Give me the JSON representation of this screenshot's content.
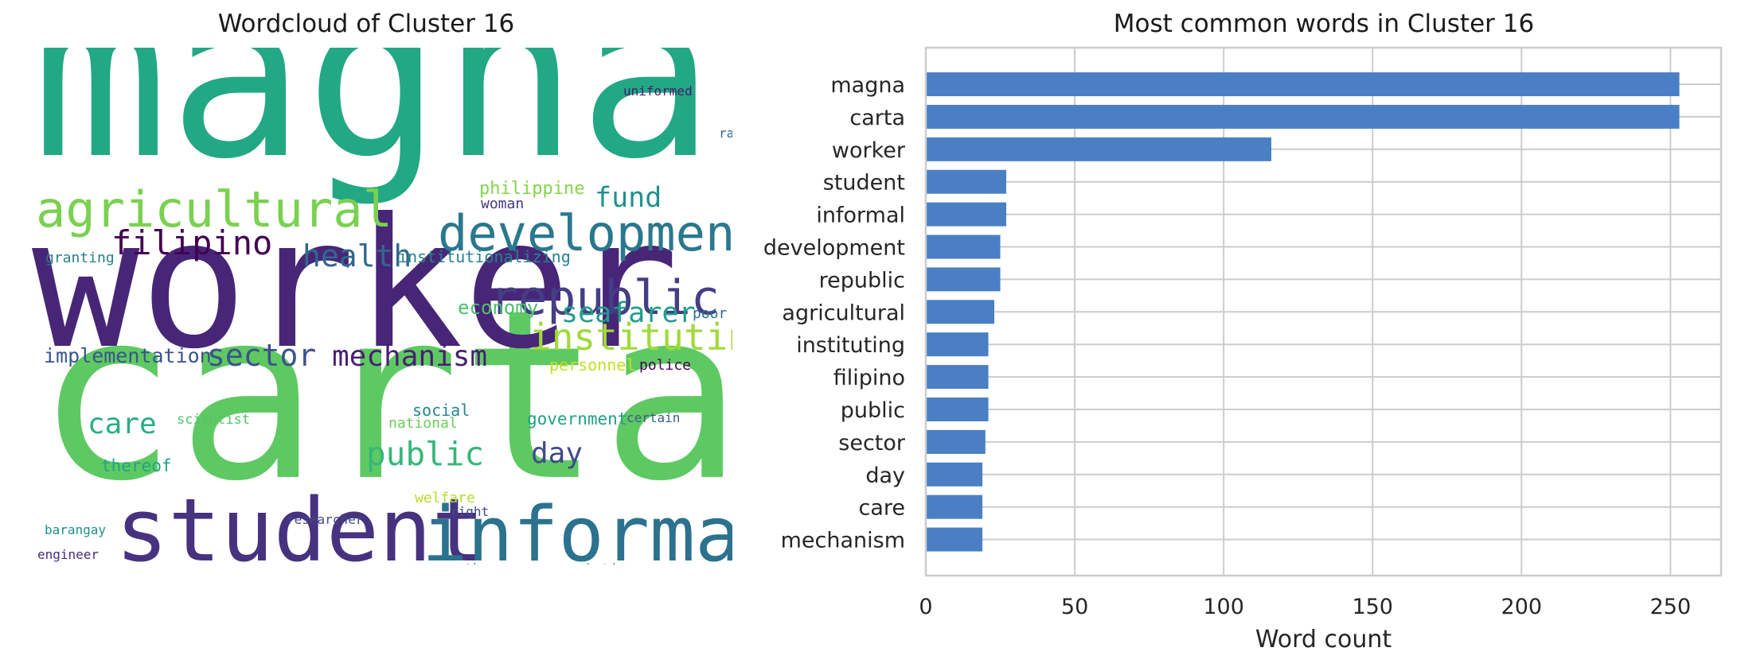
{
  "wordcloud": {
    "title": "Wordcloud of Cluster 16",
    "words": [
      {
        "text": "magna",
        "color": "#22a884"
      },
      {
        "text": "carta",
        "color": "#5ec962"
      },
      {
        "text": "worker",
        "color": "#482677"
      },
      {
        "text": "student",
        "color": "#46327e"
      },
      {
        "text": "informal",
        "color": "#2c728e"
      },
      {
        "text": "development",
        "color": "#2a788e"
      },
      {
        "text": "agricultural",
        "color": "#7ad151"
      },
      {
        "text": "republic",
        "color": "#433e85"
      },
      {
        "text": "instituting",
        "color": "#a0da39"
      },
      {
        "text": "filipino",
        "color": "#440154"
      },
      {
        "text": "health",
        "color": "#31688e"
      },
      {
        "text": "fund",
        "color": "#21918c"
      },
      {
        "text": "seafarer",
        "color": "#1f9e89"
      },
      {
        "text": "sector",
        "color": "#3b528b"
      },
      {
        "text": "mechanism",
        "color": "#481f70"
      },
      {
        "text": "public",
        "color": "#35b779"
      },
      {
        "text": "care",
        "color": "#29af7f"
      },
      {
        "text": "day",
        "color": "#3e4a89"
      },
      {
        "text": "implementation",
        "color": "#39568c"
      },
      {
        "text": "philippine",
        "color": "#84d44b"
      },
      {
        "text": "woman",
        "color": "#453781"
      },
      {
        "text": "economy",
        "color": "#4ac16d"
      },
      {
        "text": "institutionalizing",
        "color": "#26828e"
      },
      {
        "text": "granting",
        "color": "#287d8e"
      },
      {
        "text": "poor",
        "color": "#2d708e"
      },
      {
        "text": "personnel",
        "color": "#c2df23"
      },
      {
        "text": "police",
        "color": "#440154"
      },
      {
        "text": "government",
        "color": "#1fa187"
      },
      {
        "text": "social",
        "color": "#24868e"
      },
      {
        "text": "national",
        "color": "#6ccd5a"
      },
      {
        "text": "scientist",
        "color": "#52c569"
      },
      {
        "text": "certain",
        "color": "#365d8d"
      },
      {
        "text": "thereof",
        "color": "#20a386"
      },
      {
        "text": "welfare",
        "color": "#b5de2b"
      },
      {
        "text": "right",
        "color": "#3d4d8a"
      },
      {
        "text": "researcher",
        "color": "#3f4889"
      },
      {
        "text": "barangay",
        "color": "#218f8d"
      },
      {
        "text": "engineer",
        "color": "#472c7a"
      },
      {
        "text": "youth",
        "color": "#1e9b8a"
      },
      {
        "text": "association",
        "color": "#2e6e8e"
      },
      {
        "text": "uniformed",
        "color": "#481a6c"
      },
      {
        "text": "ra",
        "color": "#32658e"
      }
    ]
  },
  "chart_data": {
    "type": "bar",
    "orientation": "horizontal",
    "title": "Most common words in Cluster 16",
    "xlabel": "Word count",
    "ylabel": "",
    "categories": [
      "magna",
      "carta",
      "worker",
      "student",
      "informal",
      "development",
      "republic",
      "agricultural",
      "instituting",
      "filipino",
      "public",
      "sector",
      "day",
      "care",
      "mechanism"
    ],
    "values": [
      253,
      253,
      116,
      27,
      27,
      25,
      25,
      23,
      21,
      21,
      21,
      20,
      19,
      19,
      19
    ],
    "xlim": [
      0,
      267
    ],
    "xticks": [
      0,
      50,
      100,
      150,
      200,
      250
    ],
    "grid": true,
    "bar_color": "#4a7fc4",
    "grid_color": "#cccccc"
  }
}
